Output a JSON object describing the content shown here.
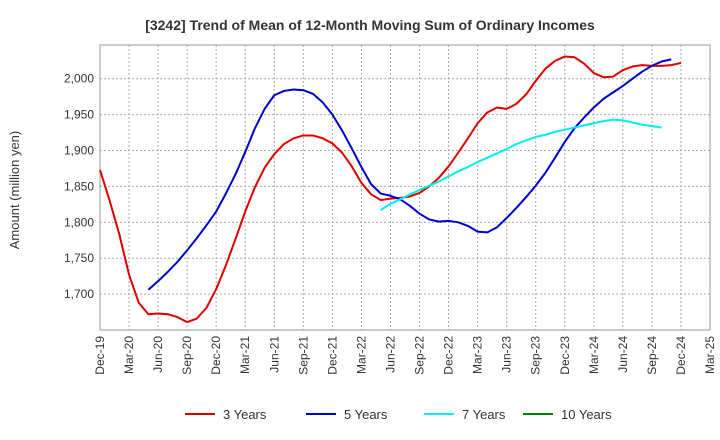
{
  "chart_data": {
    "type": "line",
    "title": "[3242]  Trend of Mean of 12-Month Moving Sum of Ordinary Incomes",
    "xlabel": "",
    "ylabel": "Amount (million yen)",
    "ylim": [
      1650,
      2047
    ],
    "yticks": [
      1700,
      1750,
      1800,
      1850,
      1900,
      1950,
      2000
    ],
    "ytick_labels": [
      "1,700",
      "1,750",
      "1,800",
      "1,850",
      "1,900",
      "1,950",
      "2,000"
    ],
    "x_range": [
      "Dec-19",
      "Mar-25"
    ],
    "x_tick_labels": [
      "Dec-19",
      "Mar-20",
      "Jun-20",
      "Sep-20",
      "Dec-20",
      "Mar-21",
      "Jun-21",
      "Sep-21",
      "Dec-21",
      "Mar-22",
      "Jun-22",
      "Sep-22",
      "Dec-22",
      "Mar-23",
      "Jun-23",
      "Sep-23",
      "Dec-23",
      "Mar-24",
      "Jun-24",
      "Sep-24",
      "Dec-24",
      "Mar-25"
    ],
    "grid": true,
    "legend_position": "bottom",
    "series": [
      {
        "name": "3 Years",
        "color": "#dd0000",
        "start": "Dec-19",
        "values": [
          1873,
          1830,
          1783,
          1727,
          1688,
          1672,
          1673,
          1672,
          1668,
          1661,
          1666,
          1681,
          1707,
          1740,
          1777,
          1815,
          1849,
          1876,
          1895,
          1909,
          1917,
          1921,
          1921,
          1917,
          1910,
          1897,
          1878,
          1855,
          1839,
          1831,
          1833,
          1834,
          1836,
          1841,
          1850,
          1862,
          1878,
          1897,
          1917,
          1938,
          1953,
          1960,
          1958,
          1965,
          1978,
          1997,
          2014,
          2025,
          2031,
          2030,
          2021,
          2008,
          2002,
          2003,
          2012,
          2017,
          2019,
          2018,
          2018,
          2019,
          2022
        ]
      },
      {
        "name": "5 Years",
        "color": "#0000cc",
        "start": "May-20",
        "values": [
          1706,
          1718,
          1731,
          1745,
          1761,
          1778,
          1796,
          1815,
          1840,
          1867,
          1898,
          1931,
          1958,
          1977,
          1983,
          1985,
          1984,
          1979,
          1967,
          1950,
          1928,
          1903,
          1877,
          1853,
          1840,
          1837,
          1832,
          1823,
          1812,
          1804,
          1801,
          1802,
          1800,
          1795,
          1787,
          1786,
          1793,
          1806,
          1820,
          1835,
          1851,
          1869,
          1890,
          1912,
          1931,
          1946,
          1960,
          1972,
          1981,
          1990,
          2000,
          2010,
          2018,
          2024,
          2027
        ]
      },
      {
        "name": "7 Years",
        "color": "#00eeee",
        "start": "May-22",
        "values": [
          1817,
          1826,
          1832,
          1839,
          1845,
          1851,
          1857,
          1864,
          1871,
          1877,
          1884,
          1890,
          1896,
          1902,
          1909,
          1914,
          1919,
          1922,
          1926,
          1929,
          1932,
          1935,
          1938,
          1941,
          1943,
          1942,
          1939,
          1936,
          1934,
          1932
        ]
      },
      {
        "name": "10 Years",
        "color": "#008000",
        "start": "Dec-24",
        "values": []
      }
    ]
  }
}
